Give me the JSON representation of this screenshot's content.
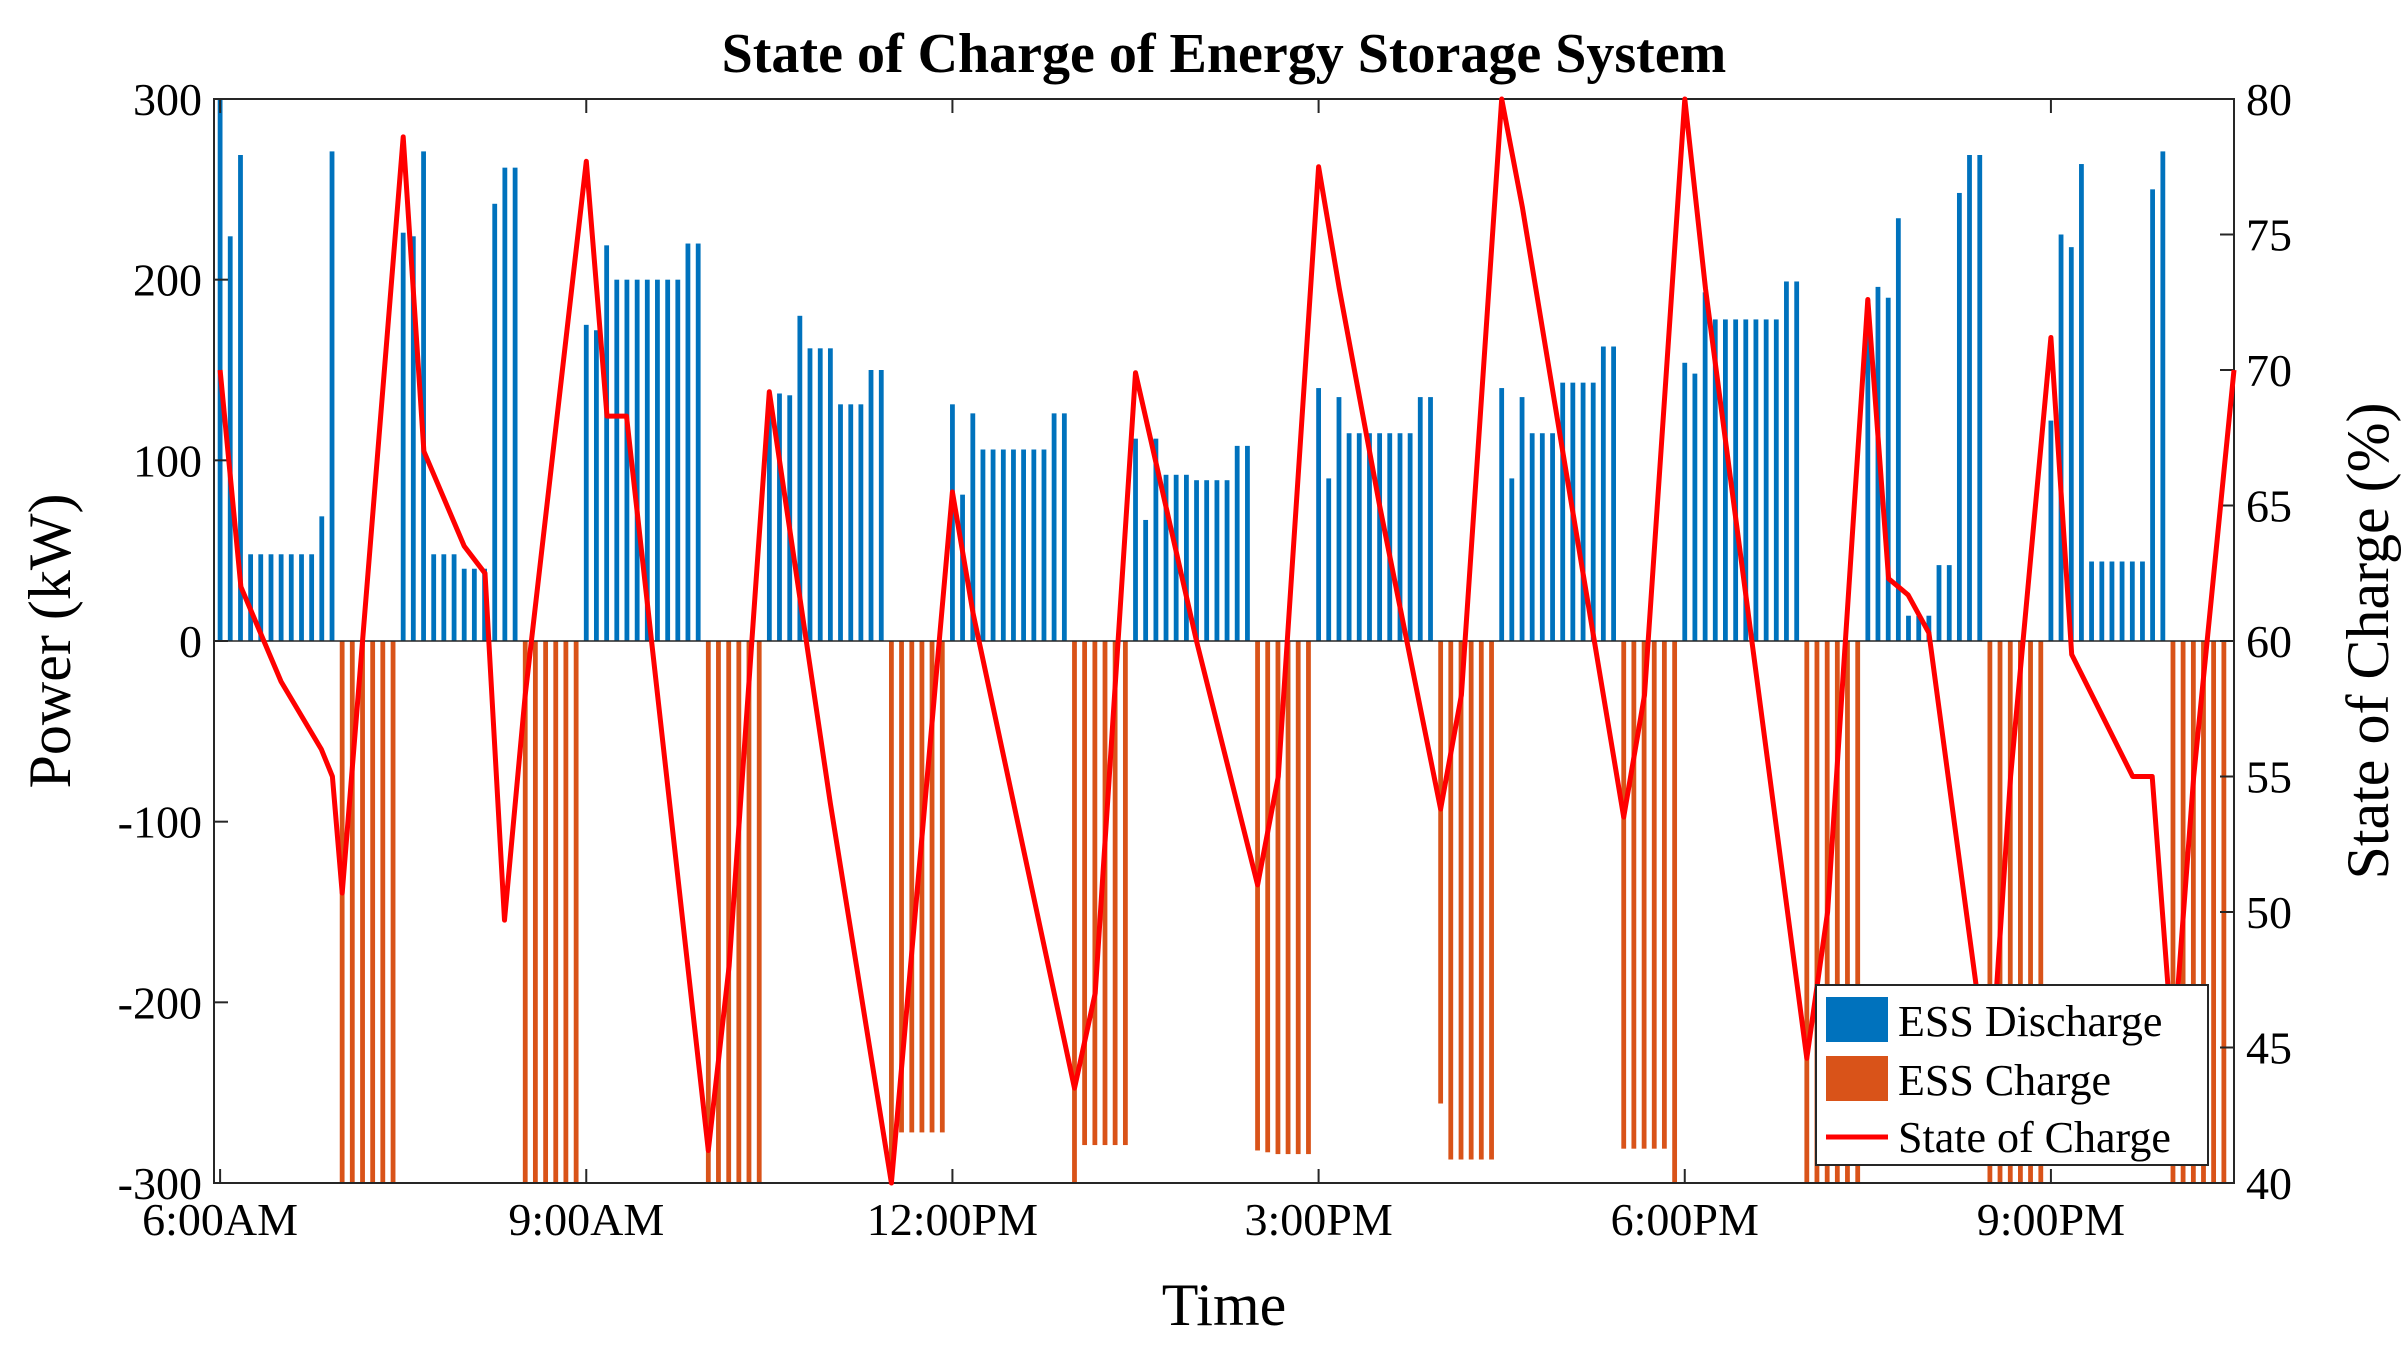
{
  "chart_data": {
    "type": "bar+line",
    "title": "State of Charge of Energy Storage System",
    "xlabel": "Time",
    "ylabel_left": "Power (kW)",
    "ylabel_right": "State of Charge (%)",
    "ylim_left": [
      -300,
      300
    ],
    "ylim_right": [
      40,
      80
    ],
    "xlim_hours": [
      5.95,
      22.5
    ],
    "yticks_left": [
      300,
      200,
      100,
      0,
      -100,
      -200,
      -300
    ],
    "yticks_left_labels": [
      "300",
      "200",
      "100",
      "0",
      "-100",
      "-200",
      "-300"
    ],
    "yticks_right": [
      80,
      75,
      70,
      65,
      60,
      55,
      50,
      45,
      40
    ],
    "yticks_right_labels": [
      "80",
      "75",
      "70",
      "65",
      "60",
      "55",
      "50",
      "45",
      "40"
    ],
    "xticks_hours": [
      6,
      9,
      12,
      15,
      18,
      21
    ],
    "xtick_labels": [
      "6:00AM",
      "9:00AM",
      "12:00PM",
      "3:00PM",
      "6:00PM",
      "9:00PM"
    ],
    "grid": false,
    "legend_position": "bottom-right",
    "colors": {
      "discharge": "#0072BD",
      "charge": "#D95319",
      "soc": "#FF0000"
    },
    "series": [
      {
        "name": "ESS Discharge",
        "type": "bar",
        "x_hours": [
          6.0,
          6.083,
          6.167,
          6.25,
          6.333,
          6.417,
          6.5,
          6.583,
          6.667,
          6.75,
          6.833,
          6.917,
          7.5,
          7.583,
          7.667,
          7.75,
          7.833,
          7.917,
          8.0,
          8.083,
          8.167,
          8.25,
          8.333,
          8.417,
          9.0,
          9.083,
          9.167,
          9.25,
          9.333,
          9.417,
          9.5,
          9.583,
          9.667,
          9.75,
          9.833,
          9.917,
          10.5,
          10.583,
          10.667,
          10.75,
          10.833,
          10.917,
          11.0,
          11.083,
          11.167,
          11.25,
          11.333,
          11.417,
          12.0,
          12.083,
          12.167,
          12.25,
          12.333,
          12.417,
          12.5,
          12.583,
          12.667,
          12.75,
          12.833,
          12.917,
          13.5,
          13.583,
          13.667,
          13.75,
          13.833,
          13.917,
          14.0,
          14.083,
          14.167,
          14.25,
          14.333,
          14.417,
          15.0,
          15.083,
          15.167,
          15.25,
          15.333,
          15.417,
          15.5,
          15.583,
          15.667,
          15.75,
          15.833,
          15.917,
          16.5,
          16.583,
          16.667,
          16.75,
          16.833,
          16.917,
          17.0,
          17.083,
          17.167,
          17.25,
          17.333,
          17.417,
          18.0,
          18.083,
          18.167,
          18.25,
          18.333,
          18.417,
          18.5,
          18.583,
          18.667,
          18.75,
          18.833,
          18.917,
          19.5,
          19.583,
          19.667,
          19.75,
          19.833,
          19.917,
          20.0,
          20.083,
          20.167,
          20.25,
          20.333,
          20.417,
          21.0,
          21.083,
          21.167,
          21.25,
          21.333,
          21.417,
          21.5,
          21.583,
          21.667,
          21.75,
          21.833,
          21.917
        ],
        "values": [
          300,
          224,
          269,
          48,
          48,
          48,
          48,
          48,
          48,
          48,
          69,
          271,
          226,
          224,
          271,
          48,
          48,
          48,
          40,
          40,
          40,
          242,
          262,
          262,
          175,
          172,
          219,
          200,
          200,
          200,
          200,
          200,
          200,
          200,
          220,
          220,
          134,
          137,
          136,
          180,
          162,
          162,
          162,
          131,
          131,
          131,
          150,
          150,
          131,
          81,
          126,
          106,
          106,
          106,
          106,
          106,
          106,
          106,
          126,
          126,
          112,
          67,
          112,
          92,
          92,
          92,
          89,
          89,
          89,
          89,
          108,
          108,
          140,
          90,
          135,
          115,
          115,
          115,
          115,
          115,
          115,
          115,
          135,
          135,
          140,
          90,
          135,
          115,
          115,
          115,
          143,
          143,
          143,
          143,
          163,
          163,
          154,
          148,
          193,
          178,
          178,
          178,
          178,
          178,
          178,
          178,
          199,
          199,
          189,
          196,
          190,
          234,
          14,
          14,
          14,
          42,
          42,
          248,
          269,
          269,
          122,
          225,
          218,
          264,
          44,
          44,
          44,
          44,
          44,
          44,
          250,
          271
        ]
      },
      {
        "name": "ESS Charge",
        "type": "bar",
        "x_hours": [
          7.0,
          7.083,
          7.167,
          7.25,
          7.333,
          7.417,
          8.5,
          8.583,
          8.667,
          8.75,
          8.833,
          8.917,
          10.0,
          10.083,
          10.167,
          10.25,
          10.333,
          10.417,
          11.5,
          11.583,
          11.667,
          11.75,
          11.833,
          11.917,
          13.0,
          13.083,
          13.167,
          13.25,
          13.333,
          13.417,
          14.5,
          14.583,
          14.667,
          14.75,
          14.833,
          14.917,
          16.0,
          16.083,
          16.167,
          16.25,
          16.333,
          16.417,
          17.5,
          17.583,
          17.667,
          17.75,
          17.833,
          17.917,
          19.0,
          19.083,
          19.167,
          19.25,
          19.333,
          19.417,
          20.5,
          20.583,
          20.667,
          20.75,
          20.833,
          20.917,
          22.0,
          22.083,
          22.167,
          22.25,
          22.333,
          22.417
        ],
        "values": [
          -300,
          -300,
          -300,
          -300,
          -300,
          -300,
          -300,
          -300,
          -300,
          -300,
          -300,
          -300,
          -300,
          -300,
          -300,
          -300,
          -300,
          -300,
          -300,
          -272,
          -272,
          -272,
          -272,
          -272,
          -300,
          -279,
          -279,
          -279,
          -279,
          -279,
          -282,
          -283,
          -284,
          -284,
          -284,
          -284,
          -256,
          -287,
          -287,
          -287,
          -287,
          -287,
          -281,
          -281,
          -281,
          -281,
          -281,
          -300,
          -300,
          -300,
          -300,
          -300,
          -300,
          -300,
          -300,
          -300,
          -300,
          -300,
          -300,
          -300,
          -300,
          -300,
          -300,
          -300,
          -300,
          -300
        ]
      },
      {
        "name": "State of Charge",
        "type": "line",
        "x_hours": [
          6.0,
          6.17,
          6.5,
          6.83,
          6.92,
          7.0,
          7.5,
          7.67,
          8.0,
          8.17,
          8.33,
          8.5,
          9.0,
          9.17,
          9.33,
          10.0,
          10.17,
          10.5,
          11.0,
          11.5,
          12.0,
          12.17,
          13.0,
          13.17,
          13.5,
          14.0,
          14.5,
          14.67,
          15.0,
          15.17,
          15.5,
          16.0,
          16.17,
          16.5,
          16.67,
          17.0,
          17.5,
          17.67,
          18.0,
          18.17,
          19.0,
          19.17,
          19.5,
          19.67,
          19.83,
          20.0,
          20.5,
          20.67,
          21.0,
          21.17,
          21.67,
          21.83,
          22.0,
          22.17,
          22.5
        ],
        "values": [
          70,
          62,
          58.5,
          56,
          55,
          50.7,
          78.6,
          67,
          63.5,
          62.5,
          49.7,
          58,
          77.7,
          68.3,
          68.3,
          41.2,
          48,
          69.2,
          54,
          40,
          65.5,
          61,
          43.5,
          47,
          69.9,
          60,
          51,
          55,
          77.5,
          73,
          65,
          53.8,
          58,
          80,
          76,
          67,
          53.5,
          58,
          80,
          73,
          44.6,
          50,
          72.6,
          62.3,
          61.7,
          60.3,
          43.5,
          55,
          71.2,
          59.5,
          55,
          55,
          44.8,
          55,
          70
        ]
      }
    ]
  }
}
